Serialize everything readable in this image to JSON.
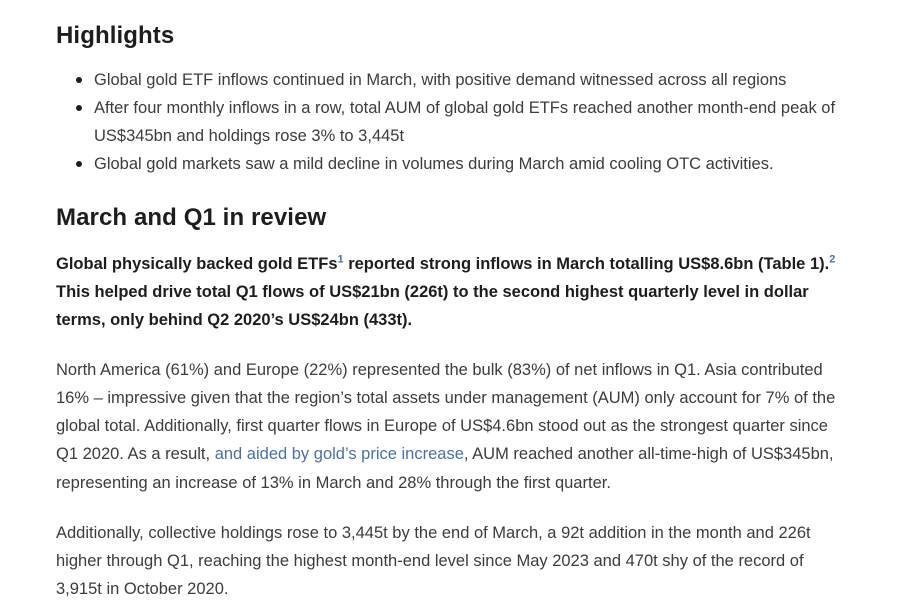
{
  "page": {
    "background": "#ffffff",
    "text_color": "#3c3c3b",
    "heading_color": "#1d1d1b",
    "link_color": "#4a70ad"
  },
  "highlights": {
    "title": "Highlights",
    "bullets": [
      "Global gold ETF inflows continued in March, with positive demand witnessed across all regions",
      "After four monthly inflows in a row, total AUM of global gold ETFs reached another month-end peak of US$345bn and holdings rose 3% to 3,445t",
      "Global gold markets saw a mild decline in volumes during March amid cooling OTC activities."
    ]
  },
  "review": {
    "title": "March and Q1 in review",
    "lead": {
      "part1": "Global physically backed gold ETFs",
      "footnote1": "1",
      "part2": " reported strong inflows in March totalling US$8.6bn (Table 1).",
      "footnote2": "2",
      "part3": " This helped drive total Q1 flows of US$21bn (226t) to the second highest quarterly level in dollar terms, only behind Q2 2020’s US$24bn (433t)."
    },
    "para2": {
      "part1": "North America (61%) and Europe (22%) represented the bulk (83%) of net inflows in Q1. Asia contributed 16% – impressive given that the region’s total assets under management (AUM) only account for 7% of the global total. Additionally, first quarter flows in Europe of US$4.6bn stood out as the strongest quarter since Q1 2020. As a result, ",
      "link_text": "and aided by gold’s price increase",
      "part2": ", AUM reached another all-time-high of US$345bn, representing an increase of 13% in March and 28% through the first quarter."
    },
    "para3": "Additionally, collective holdings rose to 3,445t by the end of March, a 92t addition in the month and 226t higher through Q1, reaching the highest month-end level since May 2023 and 470t shy of the record of 3,915t in October 2020."
  }
}
